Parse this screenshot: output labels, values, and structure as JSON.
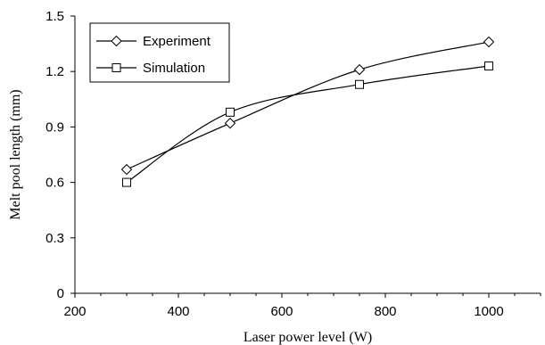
{
  "chart_data": {
    "type": "line",
    "xlabel": "Laser power level (W)",
    "ylabel": "Melt pool length (mm)",
    "xlim": [
      200,
      1100
    ],
    "ylim": [
      0,
      1.5
    ],
    "x_ticks": [
      "200",
      "400",
      "600",
      "800",
      "1000"
    ],
    "y_ticks": [
      "0",
      "0.3",
      "0.6",
      "0.9",
      "1.2",
      "1.5"
    ],
    "grid": false,
    "legend_position": "top-left",
    "series": [
      {
        "name": "Experiment",
        "marker": "diamond",
        "color": "#000000",
        "x": [
          300,
          500,
          750,
          1000
        ],
        "y": [
          0.67,
          0.92,
          1.21,
          1.36
        ]
      },
      {
        "name": "Simulation",
        "marker": "square",
        "color": "#000000",
        "x": [
          300,
          500,
          750,
          1000
        ],
        "y": [
          0.6,
          0.98,
          1.13,
          1.23
        ]
      }
    ]
  }
}
